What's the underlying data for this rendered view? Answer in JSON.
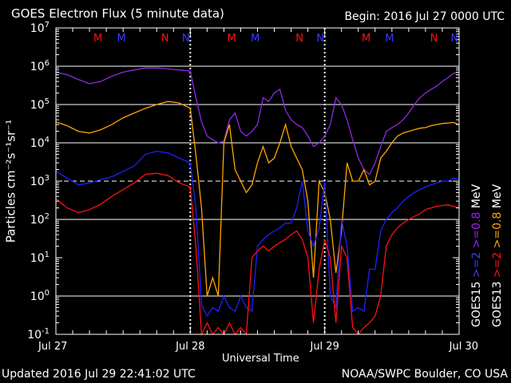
{
  "chart_data": {
    "type": "line",
    "title": "GOES Electron Flux (5 minute data)",
    "begin": "Begin: 2016 Jul 27 0000 UTC",
    "xlabel": "Universal Time",
    "ylabel": "Particles cm⁻²s⁻¹sr⁻¹",
    "yscale": "log",
    "ylim": [
      0.1,
      10000000
    ],
    "xlim": [
      0,
      72
    ],
    "x_unit": "hours since 2016 Jul 27 0000 UTC",
    "x_ticks": [
      {
        "x": 0,
        "label": "Jul 27"
      },
      {
        "x": 24,
        "label": "Jul 28"
      },
      {
        "x": 48,
        "label": "Jul 29"
      },
      {
        "x": 72,
        "label": "Jul 30"
      }
    ],
    "y_ticks": [
      {
        "value": 0.1,
        "mant": "10",
        "exp": "-1"
      },
      {
        "value": 1,
        "mant": "10",
        "exp": "0"
      },
      {
        "value": 10,
        "mant": "10",
        "exp": "1"
      },
      {
        "value": 100,
        "mant": "10",
        "exp": "2"
      },
      {
        "value": 1000,
        "mant": "10",
        "exp": "3"
      },
      {
        "value": 10000,
        "mant": "10",
        "exp": "4"
      },
      {
        "value": 100000,
        "mant": "10",
        "exp": "5"
      },
      {
        "value": 1000000,
        "mant": "10",
        "exp": "6"
      },
      {
        "value": 10000000,
        "mant": "10",
        "exp": "7"
      }
    ],
    "gridlines_at": [
      1,
      100,
      1000,
      10000,
      100000,
      1000000
    ],
    "dashed_gridline_at": 1000,
    "day_boundaries_dotted": [
      24,
      48
    ],
    "markers": [
      {
        "x": 7.5,
        "label": "M",
        "color": "#ff1111"
      },
      {
        "x": 11.7,
        "label": "M",
        "color": "#3a3aff"
      },
      {
        "x": 19.5,
        "label": "N",
        "color": "#ff1111"
      },
      {
        "x": 23.2,
        "label": "N",
        "color": "#3a3aff"
      },
      {
        "x": 31.4,
        "label": "M",
        "color": "#ff1111"
      },
      {
        "x": 35.6,
        "label": "M",
        "color": "#3a3aff"
      },
      {
        "x": 43.5,
        "label": "N",
        "color": "#ff1111"
      },
      {
        "x": 47.2,
        "label": "N",
        "color": "#3a3aff"
      },
      {
        "x": 55.4,
        "label": "M",
        "color": "#ff1111"
      },
      {
        "x": 59.6,
        "label": "M",
        "color": "#3a3aff"
      },
      {
        "x": 67.5,
        "label": "N",
        "color": "#ff1111"
      },
      {
        "x": 71.2,
        "label": "N",
        "color": "#3a3aff"
      }
    ],
    "legend": {
      "col1": [
        {
          "text": "GOES15",
          "color": "#ffffff"
        },
        {
          "text": ">=2",
          "color": "#3a3aff"
        },
        {
          "text": ">=0.8",
          "color": "#a020f0"
        },
        {
          "text": "MeV",
          "color": "#ffffff"
        }
      ],
      "col2": [
        {
          "text": "GOES13",
          "color": "#ffffff"
        },
        {
          "text": ">=2",
          "color": "#ff1111"
        },
        {
          "text": ">=0.8",
          "color": "#ffa500"
        },
        {
          "text": "MeV",
          "color": "#ffffff"
        }
      ]
    },
    "series": [
      {
        "name": "GOES15 >=0.8 MeV",
        "color": "#8a2be2",
        "x": [
          0,
          2,
          4,
          6,
          8,
          10,
          12,
          14,
          16,
          18,
          20,
          22,
          24,
          25,
          26,
          27,
          28,
          29,
          30,
          31,
          32,
          33,
          34,
          35,
          36,
          37,
          38,
          39,
          40,
          41,
          42,
          43,
          44,
          45,
          46,
          47,
          48,
          49,
          50,
          51,
          52,
          53,
          54,
          55,
          56,
          57,
          58,
          59,
          60,
          61,
          62,
          63,
          64,
          65,
          66,
          67,
          68,
          69,
          70,
          71,
          72
        ],
        "y": [
          700000,
          600000,
          450000,
          350000,
          400000,
          550000,
          700000,
          800000,
          900000,
          900000,
          850000,
          800000,
          750000,
          150000,
          35000,
          15000,
          12000,
          10000,
          11000,
          40000,
          60000,
          20000,
          15000,
          20000,
          30000,
          150000,
          120000,
          200000,
          250000,
          70000,
          40000,
          30000,
          25000,
          15000,
          8000,
          10000,
          15000,
          30000,
          150000,
          100000,
          40000,
          12000,
          4000,
          2000,
          1500,
          3000,
          8000,
          20000,
          25000,
          30000,
          40000,
          60000,
          100000,
          150000,
          200000,
          250000,
          300000,
          400000,
          500000,
          650000,
          700000
        ]
      },
      {
        "name": "GOES13 >=0.8 MeV",
        "color": "#ffa500",
        "x": [
          0,
          2,
          4,
          6,
          8,
          10,
          12,
          14,
          16,
          18,
          20,
          22,
          24,
          25,
          26,
          27,
          28,
          29,
          30,
          31,
          32,
          33,
          34,
          35,
          36,
          37,
          38,
          39,
          40,
          41,
          42,
          43,
          44,
          45,
          46,
          47,
          48,
          49,
          50,
          51,
          52,
          53,
          54,
          55,
          56,
          57,
          58,
          59,
          60,
          61,
          62,
          63,
          64,
          65,
          66,
          67,
          68,
          69,
          70,
          71,
          72
        ],
        "y": [
          35000,
          28000,
          20000,
          18000,
          22000,
          30000,
          45000,
          60000,
          80000,
          100000,
          120000,
          110000,
          80000,
          5000,
          200,
          1,
          3,
          1,
          10000,
          30000,
          2000,
          1000,
          500,
          800,
          3000,
          8000,
          3000,
          4000,
          10000,
          30000,
          8000,
          4000,
          2000,
          300,
          3,
          1000,
          500,
          100,
          4,
          50,
          3000,
          1000,
          1000,
          2000,
          800,
          1000,
          4000,
          6000,
          10000,
          15000,
          18000,
          20000,
          22000,
          24000,
          25000,
          28000,
          30000,
          32000,
          33000,
          34000,
          30000
        ]
      },
      {
        "name": "GOES15 >=2 MeV",
        "color": "#2020ff",
        "x": [
          0,
          2,
          4,
          6,
          8,
          10,
          12,
          14,
          16,
          18,
          20,
          22,
          24,
          25,
          26,
          27,
          28,
          29,
          30,
          31,
          32,
          33,
          34,
          35,
          36,
          37,
          38,
          39,
          40,
          41,
          42,
          43,
          44,
          45,
          46,
          47,
          48,
          49,
          50,
          51,
          52,
          53,
          54,
          55,
          56,
          57,
          58,
          59,
          60,
          61,
          62,
          63,
          64,
          65,
          66,
          67,
          68,
          69,
          70,
          71,
          72
        ],
        "y": [
          1800,
          1200,
          800,
          900,
          1100,
          1300,
          1800,
          2500,
          5000,
          6000,
          5500,
          4000,
          3000,
          200,
          0.6,
          0.3,
          0.5,
          0.4,
          1,
          0.5,
          0.4,
          1,
          0.5,
          0.4,
          20,
          30,
          40,
          50,
          60,
          80,
          80,
          200,
          1000,
          50,
          20,
          60,
          1000,
          1,
          0.5,
          100,
          20,
          0.4,
          0.5,
          0.4,
          5,
          5,
          50,
          100,
          150,
          200,
          300,
          400,
          500,
          600,
          700,
          800,
          900,
          1000,
          1000,
          1200,
          1100
        ]
      },
      {
        "name": "GOES13 >=2 MeV",
        "color": "#ff1111",
        "x": [
          0,
          2,
          4,
          6,
          8,
          10,
          12,
          14,
          16,
          18,
          20,
          22,
          24,
          25,
          26,
          27,
          28,
          29,
          30,
          31,
          32,
          33,
          34,
          35,
          36,
          37,
          38,
          39,
          40,
          41,
          42,
          43,
          44,
          45,
          46,
          47,
          48,
          49,
          50,
          51,
          52,
          53,
          54,
          55,
          56,
          57,
          58,
          59,
          60,
          61,
          62,
          63,
          64,
          65,
          66,
          67,
          68,
          69,
          70,
          71,
          72
        ],
        "y": [
          350,
          200,
          150,
          180,
          250,
          400,
          600,
          900,
          1500,
          1600,
          1400,
          900,
          700,
          20,
          0.1,
          0.2,
          0.1,
          0.15,
          0.1,
          0.2,
          0.1,
          0.15,
          0.1,
          10,
          15,
          20,
          15,
          20,
          25,
          30,
          40,
          50,
          30,
          10,
          0.2,
          5,
          30,
          10,
          0.2,
          20,
          10,
          0.15,
          0.1,
          0.15,
          0.2,
          0.3,
          1,
          20,
          40,
          60,
          80,
          100,
          120,
          140,
          180,
          200,
          220,
          230,
          240,
          220,
          200
        ]
      }
    ]
  },
  "footer": {
    "updated": "Updated 2016 Jul 29 22:41:02 UTC",
    "credit": "NOAA/SWPC Boulder, CO USA"
  }
}
